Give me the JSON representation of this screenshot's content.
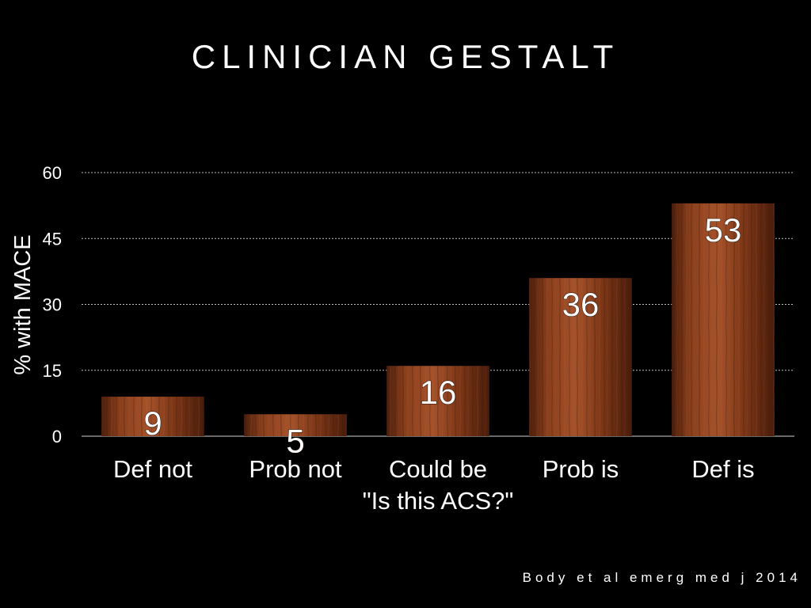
{
  "slide": {
    "title": "CLINICIAN GESTALT",
    "citation": "Body et al emerg med j 2014"
  },
  "colors": {
    "background": "#000000",
    "bar_light": "#a5522a",
    "bar_dark": "#5b2610",
    "grid": "#bfbfbf",
    "text": "#ffffff"
  },
  "chart_data": {
    "type": "bar",
    "title": "CLINICIAN GESTALT",
    "xlabel": "",
    "ylabel": "% with MACE",
    "categories": [
      "Def not",
      "Prob not",
      "Could be",
      "Prob is",
      "Def is"
    ],
    "category_note": "\"Is this ACS?\"",
    "values": [
      9,
      5,
      16,
      36,
      53
    ],
    "data_labels": [
      "9",
      "5",
      "16",
      "36",
      "53"
    ],
    "ylim": [
      0,
      60
    ],
    "yticks": [
      0,
      15,
      30,
      45,
      60
    ],
    "grid": true,
    "grid_style": "dotted",
    "legend": "none"
  }
}
